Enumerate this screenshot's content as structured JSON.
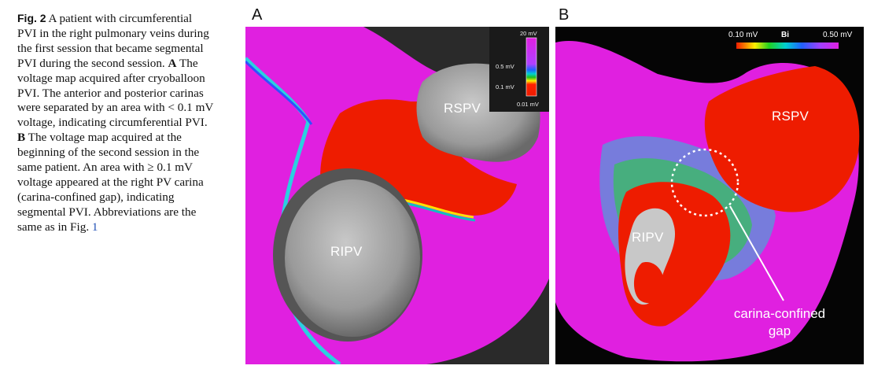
{
  "caption": {
    "fig_label": "Fig. 2",
    "part1": "A patient with circumferential PVI in the right pulmonary veins during the first session that became segmental PVI during the second session.",
    "a_letter": "A",
    "part2": "The voltage map acquired after cryoballoon PVI. The anterior and posterior carinas were separated by an area with < 0.1 mV voltage, indicating circumferential PVI.",
    "b_letter": "B",
    "part3": "The voltage map acquired at the beginning of the second session in the same patient. An area with ≥ 0.1 mV voltage appeared at the right PV carina (carina-confined gap), indicating segmental PVI. Abbreviations are the same as in Fig.",
    "ref": "1"
  },
  "panel_a": {
    "letter": "A",
    "label_rspv": "RSPV",
    "label_ripv": "RIPV",
    "scale": {
      "top": "20 mV",
      "mid1": "0.5 mV",
      "mid2": "0.1 mV",
      "bottom": "0.01 mV"
    }
  },
  "panel_b": {
    "letter": "B",
    "label_rspv": "RSPV",
    "label_ripv": "RIPV",
    "scale": {
      "left": "0.10 mV",
      "middle": "Bi",
      "right": "0.50 mV"
    },
    "annotation_line1": "carina-confined",
    "annotation_line2": "gap"
  },
  "colors": {
    "healthy_voltage": "#e020e0",
    "scar": "#ee1c00",
    "mesh_gray": "#b4b4b4",
    "background_a": "#2a2a2a",
    "background_b": "#050505"
  }
}
